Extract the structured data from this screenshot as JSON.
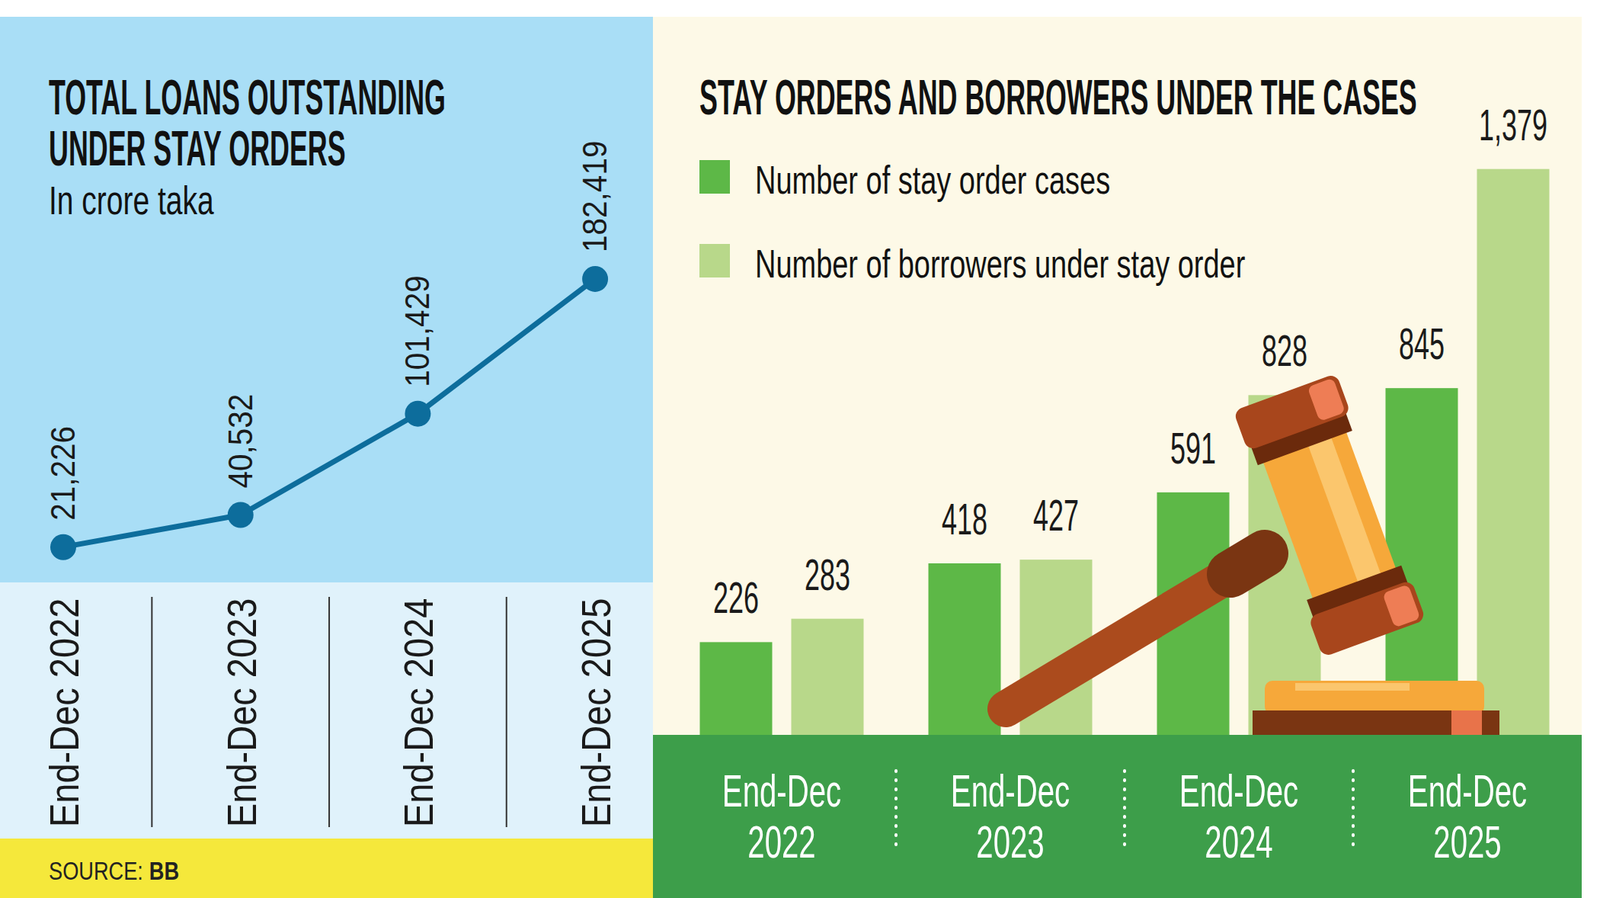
{
  "chart_data": [
    {
      "type": "line",
      "title": "TOTAL LOANS OUTSTANDING UNDER STAY ORDERS",
      "subtitle": "In crore taka",
      "categories": [
        "End-Dec 2022",
        "End-Dec 2023",
        "End-Dec 2024",
        "End-Dec 2025"
      ],
      "values": [
        21226,
        40532,
        101429,
        182419
      ],
      "value_labels": [
        "21,226",
        "40,532",
        "101,429",
        "182,419"
      ],
      "color": "#0d6d9c",
      "marker": "circle",
      "data_labels": true,
      "ylim": [
        0,
        340000
      ],
      "yticks": [],
      "tick_labels": "x",
      "grid": false
    },
    {
      "type": "bar",
      "title": "STAY ORDERS AND BORROWERS UNDER THE CASES",
      "categories": [
        "End-Dec 2022",
        "End-Dec 2023",
        "End-Dec 2024",
        "End-Dec 2025"
      ],
      "series": [
        {
          "name": "Number of stay order cases",
          "color": "#5db847",
          "values": [
            226,
            418,
            591,
            845
          ]
        },
        {
          "name": "Number of borrowers under stay order",
          "color": "#b8d88a",
          "values": [
            283,
            427,
            828,
            1379
          ],
          "value_labels": [
            "283",
            "427",
            "828",
            "1,379"
          ]
        }
      ],
      "ylim": [
        0,
        1750
      ],
      "yticks": [],
      "tick_labels": "x",
      "grid": false,
      "data_labels": true,
      "legend": "top-left"
    }
  ],
  "source": {
    "label": "SOURCE:",
    "name": "BB"
  }
}
